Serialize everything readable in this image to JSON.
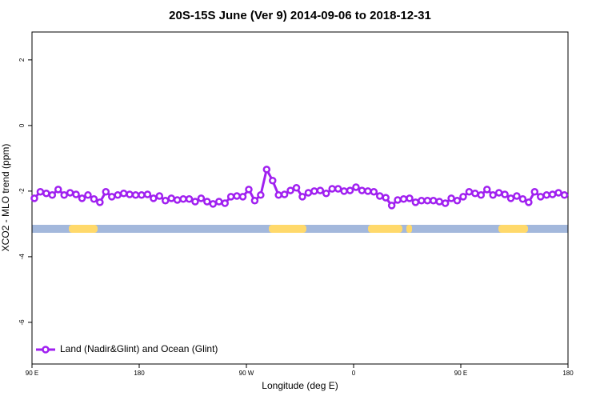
{
  "chart_data": {
    "type": "line",
    "title": "20S-15S June (Ver 9)   2014-09-06 to 2018-12-31",
    "xlabel": "Longitude (deg E)",
    "ylabel": "XCO2 - MLO trend (ppm)",
    "xlim": [
      90,
      540
    ],
    "ylim": [
      -7.27,
      2.85
    ],
    "xticks": [
      {
        "value": 90,
        "label": "90 E"
      },
      180,
      {
        "value": 270,
        "label": "90 W"
      },
      {
        "value": 360,
        "label": "0"
      },
      {
        "value": 450,
        "label": "90 E"
      },
      {
        "value": 540,
        "label": "180"
      }
    ],
    "yticks": [
      2,
      0,
      -2,
      -4,
      -6
    ],
    "legend": "bottom-left",
    "x": [
      92,
      97,
      102,
      107,
      112,
      117,
      122,
      127,
      132,
      137,
      142,
      147,
      152,
      157,
      162,
      167,
      172,
      177,
      182,
      187,
      192,
      197,
      202,
      207,
      212,
      217,
      222,
      227,
      232,
      237,
      242,
      247,
      252,
      257,
      262,
      267,
      272,
      277,
      282,
      287,
      292,
      297,
      302,
      307,
      312,
      317,
      322,
      327,
      332,
      337,
      342,
      347,
      352,
      357,
      362,
      367,
      372,
      377,
      382,
      387,
      392,
      397,
      402,
      407,
      412,
      417,
      422,
      427,
      432,
      437,
      442,
      447,
      452,
      457,
      462,
      467,
      472,
      477,
      482,
      487,
      492,
      497,
      502,
      507,
      512,
      517,
      522,
      527,
      532,
      537
    ],
    "series": [
      {
        "name": "Land (Nadir&Glint) and Ocean (Glint)",
        "color": "#a020f0",
        "values": [
          -2.22,
          -2.02,
          -2.07,
          -2.12,
          -1.95,
          -2.12,
          -2.05,
          -2.1,
          -2.22,
          -2.12,
          -2.24,
          -2.34,
          -2.02,
          -2.17,
          -2.12,
          -2.07,
          -2.1,
          -2.12,
          -2.12,
          -2.1,
          -2.22,
          -2.15,
          -2.29,
          -2.22,
          -2.27,
          -2.24,
          -2.24,
          -2.32,
          -2.22,
          -2.32,
          -2.39,
          -2.32,
          -2.37,
          -2.17,
          -2.15,
          -2.17,
          -1.95,
          -2.29,
          -2.12,
          -1.34,
          -1.68,
          -2.12,
          -2.1,
          -1.98,
          -1.9,
          -2.17,
          -2.05,
          -2.0,
          -1.98,
          -2.07,
          -1.93,
          -1.93,
          -2.0,
          -1.98,
          -1.88,
          -1.98,
          -2.0,
          -2.02,
          -2.15,
          -2.2,
          -2.44,
          -2.27,
          -2.24,
          -2.22,
          -2.34,
          -2.29,
          -2.29,
          -2.29,
          -2.32,
          -2.37,
          -2.22,
          -2.29,
          -2.17,
          -2.02,
          -2.07,
          -2.12,
          -1.95,
          -2.12,
          -2.05,
          -2.1,
          -2.22,
          -2.15,
          -2.24,
          -2.34,
          -2.02,
          -2.17,
          -2.12,
          -2.1,
          -2.05,
          -2.12
        ]
      }
    ]
  }
}
